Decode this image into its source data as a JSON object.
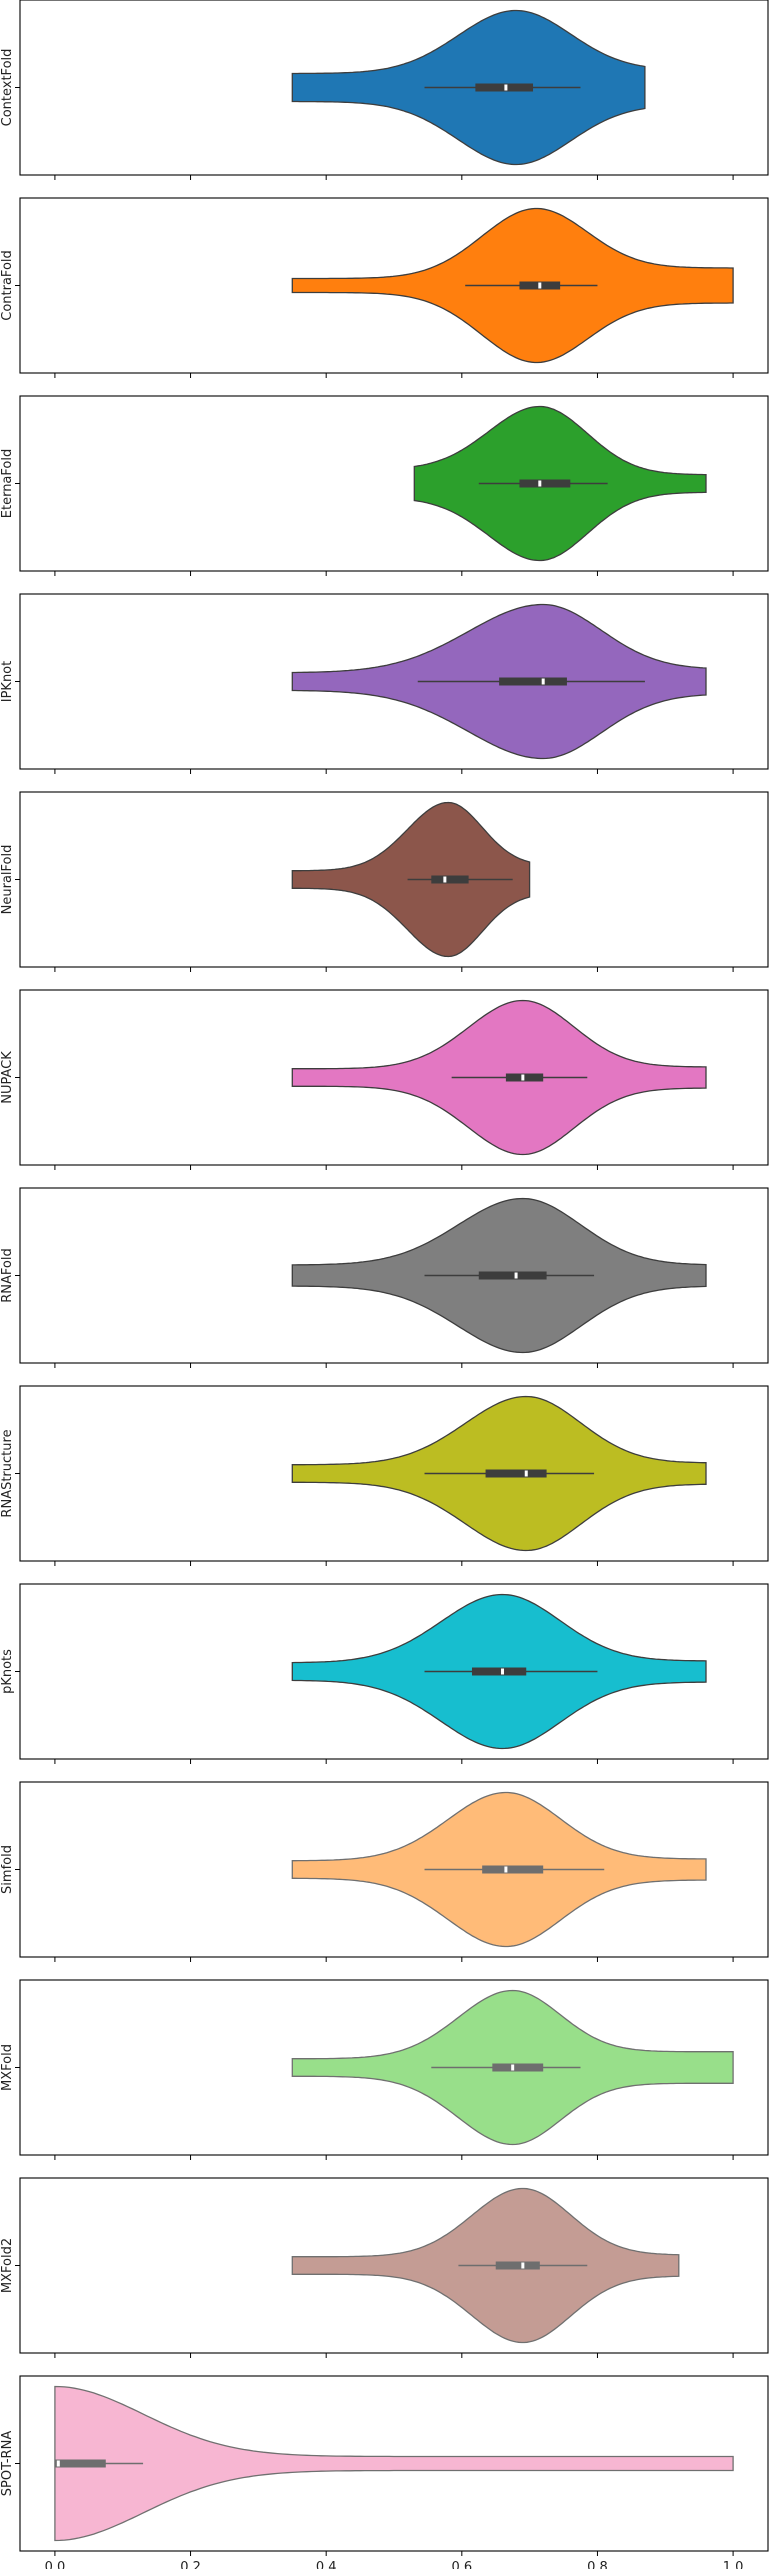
{
  "chart_data": {
    "type": "violin",
    "orientation": "horizontal",
    "layout": "stacked-panels",
    "xlim": [
      -0.05,
      1.05
    ],
    "xticks": [
      0.0,
      0.2,
      0.4,
      0.6,
      0.8,
      1.0
    ],
    "xtick_labels": [
      "0.0",
      "0.2",
      "0.4",
      "0.6",
      "0.8",
      "1.0"
    ],
    "series": [
      {
        "name": "ContextFold",
        "color": "#1f77b4",
        "muted": false,
        "min": 0.35,
        "max": 0.87,
        "mode": 0.68,
        "peak_halfwidth": 0.44,
        "left_halfwidth": 0.08,
        "right_halfwidth": 0.1,
        "spread_left": 0.085,
        "spread_right": 0.08,
        "q1": 0.62,
        "median": 0.665,
        "q3": 0.705,
        "whisker_low": 0.545,
        "whisker_high": 0.775
      },
      {
        "name": "ContraFold",
        "color": "#ff7f0e",
        "muted": false,
        "min": 0.35,
        "max": 1.0,
        "mode": 0.71,
        "peak_halfwidth": 0.44,
        "left_halfwidth": 0.04,
        "right_halfwidth": 0.1,
        "spread_left": 0.08,
        "spread_right": 0.075,
        "q1": 0.685,
        "median": 0.715,
        "q3": 0.745,
        "whisker_low": 0.605,
        "whisker_high": 0.8
      },
      {
        "name": "EternaFold",
        "color": "#2ca02c",
        "muted": false,
        "min": 0.53,
        "max": 0.96,
        "mode": 0.715,
        "peak_halfwidth": 0.44,
        "left_halfwidth": 0.08,
        "right_halfwidth": 0.05,
        "spread_left": 0.075,
        "spread_right": 0.07,
        "q1": 0.685,
        "median": 0.715,
        "q3": 0.76,
        "whisker_low": 0.625,
        "whisker_high": 0.815
      },
      {
        "name": "IPKnot",
        "color": "#9467bd",
        "muted": false,
        "min": 0.35,
        "max": 0.96,
        "mode": 0.72,
        "peak_halfwidth": 0.44,
        "left_halfwidth": 0.05,
        "right_halfwidth": 0.07,
        "spread_left": 0.11,
        "spread_right": 0.085,
        "q1": 0.655,
        "median": 0.72,
        "q3": 0.755,
        "whisker_low": 0.535,
        "whisker_high": 0.87
      },
      {
        "name": "NeuralFold",
        "color": "#8c564b",
        "muted": false,
        "min": 0.35,
        "max": 0.7,
        "mode": 0.58,
        "peak_halfwidth": 0.44,
        "left_halfwidth": 0.05,
        "right_halfwidth": 0.08,
        "spread_left": 0.06,
        "spread_right": 0.05,
        "q1": 0.555,
        "median": 0.575,
        "q3": 0.61,
        "whisker_low": 0.52,
        "whisker_high": 0.675
      },
      {
        "name": "NUPACK",
        "color": "#e377c2",
        "muted": false,
        "min": 0.35,
        "max": 0.96,
        "mode": 0.69,
        "peak_halfwidth": 0.44,
        "left_halfwidth": 0.05,
        "right_halfwidth": 0.06,
        "spread_left": 0.08,
        "spread_right": 0.075,
        "q1": 0.665,
        "median": 0.69,
        "q3": 0.72,
        "whisker_low": 0.585,
        "whisker_high": 0.785
      },
      {
        "name": "RNAFold",
        "color": "#7f7f7f",
        "muted": false,
        "min": 0.35,
        "max": 0.96,
        "mode": 0.69,
        "peak_halfwidth": 0.44,
        "left_halfwidth": 0.06,
        "right_halfwidth": 0.06,
        "spread_left": 0.095,
        "spread_right": 0.085,
        "q1": 0.625,
        "median": 0.68,
        "q3": 0.725,
        "whisker_low": 0.545,
        "whisker_high": 0.795
      },
      {
        "name": "RNAStructure",
        "color": "#bcbd22",
        "muted": false,
        "min": 0.35,
        "max": 0.96,
        "mode": 0.695,
        "peak_halfwidth": 0.44,
        "left_halfwidth": 0.05,
        "right_halfwidth": 0.06,
        "spread_left": 0.09,
        "spread_right": 0.08,
        "q1": 0.635,
        "median": 0.695,
        "q3": 0.725,
        "whisker_low": 0.545,
        "whisker_high": 0.795
      },
      {
        "name": "pKnots",
        "color": "#17becf",
        "muted": false,
        "min": 0.35,
        "max": 0.96,
        "mode": 0.66,
        "peak_halfwidth": 0.44,
        "left_halfwidth": 0.05,
        "right_halfwidth": 0.06,
        "spread_left": 0.09,
        "spread_right": 0.085,
        "q1": 0.615,
        "median": 0.66,
        "q3": 0.695,
        "whisker_low": 0.545,
        "whisker_high": 0.8
      },
      {
        "name": "Simfold",
        "color": "#ffbb78",
        "muted": true,
        "min": 0.35,
        "max": 0.96,
        "mode": 0.665,
        "peak_halfwidth": 0.44,
        "left_halfwidth": 0.05,
        "right_halfwidth": 0.06,
        "spread_left": 0.085,
        "spread_right": 0.08,
        "q1": 0.63,
        "median": 0.665,
        "q3": 0.72,
        "whisker_low": 0.545,
        "whisker_high": 0.81
      },
      {
        "name": "MXFold",
        "color": "#98df8a",
        "muted": true,
        "min": 0.35,
        "max": 1.0,
        "mode": 0.675,
        "peak_halfwidth": 0.44,
        "left_halfwidth": 0.05,
        "right_halfwidth": 0.09,
        "spread_left": 0.08,
        "spread_right": 0.07,
        "q1": 0.645,
        "median": 0.675,
        "q3": 0.72,
        "whisker_low": 0.555,
        "whisker_high": 0.775
      },
      {
        "name": "MXFold2",
        "color": "#c49c94",
        "muted": true,
        "min": 0.35,
        "max": 0.92,
        "mode": 0.69,
        "peak_halfwidth": 0.44,
        "left_halfwidth": 0.05,
        "right_halfwidth": 0.06,
        "spread_left": 0.075,
        "spread_right": 0.07,
        "q1": 0.65,
        "median": 0.69,
        "q3": 0.715,
        "whisker_low": 0.595,
        "whisker_high": 0.785
      },
      {
        "name": "SPOT-RNA",
        "color": "#f7b6d2",
        "muted": true,
        "min": 0.0,
        "max": 1.0,
        "mode": 0.0,
        "peak_halfwidth": 0.44,
        "left_halfwidth": 0.44,
        "right_halfwidth": 0.04,
        "spread_left": 0.05,
        "spread_right": 0.13,
        "q1": 0.0,
        "median": 0.005,
        "q3": 0.075,
        "whisker_low": 0.0,
        "whisker_high": 0.13
      }
    ]
  }
}
